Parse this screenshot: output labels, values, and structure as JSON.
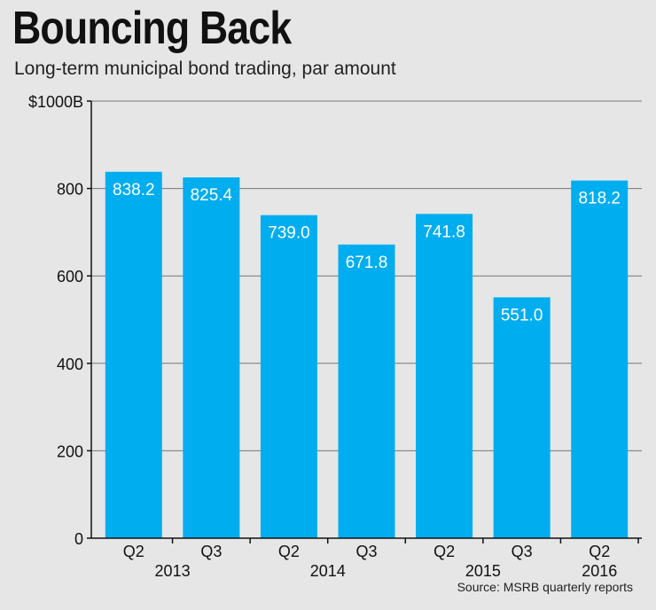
{
  "header": {
    "title": "Bouncing Back",
    "subtitle": "Long-term municipal bond trading, par amount"
  },
  "footer": {
    "source": "Source: MSRB quarterly reports"
  },
  "colors": {
    "bar": "#00adef",
    "background": "#e6e6e6",
    "gridline": "#777777",
    "axis": "#111111",
    "value_label": "#ffffff"
  },
  "chart_data": {
    "type": "bar",
    "title": "Bouncing Back",
    "subtitle": "Long-term municipal bond trading, par amount",
    "xlabel": "",
    "ylabel": "",
    "ylim": [
      0,
      1000
    ],
    "y_ticks": [
      0,
      200,
      400,
      600,
      800,
      1000
    ],
    "y_tick_labels": [
      "0",
      "200",
      "400",
      "600",
      "800",
      "$1000B"
    ],
    "grid": true,
    "categories": [
      "Q2 2013",
      "Q3 2013",
      "Q2 2014",
      "Q3 2014",
      "Q2 2015",
      "Q3 2015",
      "Q2 2016"
    ],
    "quarter_labels": [
      "Q2",
      "Q3",
      "Q2",
      "Q3",
      "Q2",
      "Q3",
      "Q2"
    ],
    "year_groups": [
      {
        "label": "2013",
        "categories": [
          0,
          1
        ]
      },
      {
        "label": "2014",
        "categories": [
          2,
          3
        ]
      },
      {
        "label": "2015",
        "categories": [
          4,
          5
        ]
      },
      {
        "label": "2016",
        "categories": [
          6
        ]
      }
    ],
    "values": [
      838.2,
      825.4,
      739.0,
      671.8,
      741.8,
      551.0,
      818.2
    ],
    "value_labels": [
      "838.2",
      "825.4",
      "739.0",
      "671.8",
      "741.8",
      "551.0",
      "818.2"
    ]
  }
}
